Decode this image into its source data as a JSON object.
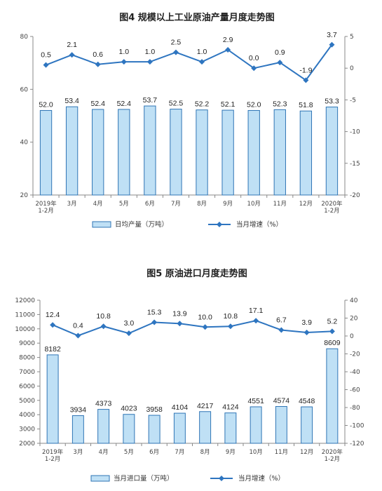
{
  "colors": {
    "bar_fill": "#bfe0f5",
    "bar_stroke": "#2f75b5",
    "line": "#2e75c0",
    "marker": "#2e75c0"
  },
  "chart_data": [
    {
      "type": "bar",
      "title": "图4  规模以上工业原油产量月度走势图",
      "categories": [
        [
          "2019年",
          "1-2月"
        ],
        [
          "3月"
        ],
        [
          "4月"
        ],
        [
          "5月"
        ],
        [
          "6月"
        ],
        [
          "7月"
        ],
        [
          "8月"
        ],
        [
          "9月"
        ],
        [
          "10月"
        ],
        [
          "11月"
        ],
        [
          "12月"
        ],
        [
          "2020年",
          "1-2月"
        ]
      ],
      "series": [
        {
          "name": "日均产量（万吨）",
          "type": "bar",
          "axis": "left",
          "values": [
            52.0,
            53.4,
            52.4,
            52.4,
            53.7,
            52.5,
            52.2,
            52.1,
            52.0,
            52.3,
            51.8,
            53.3
          ],
          "labels": [
            "52.0",
            "53.4",
            "52.4",
            "52.4",
            "53.7",
            "52.5",
            "52.2",
            "52.1",
            "52.0",
            "52.3",
            "51.8",
            "53.3"
          ]
        },
        {
          "name": "当月增速（%）",
          "type": "line",
          "axis": "right",
          "values": [
            0.5,
            2.1,
            0.6,
            1.0,
            1.0,
            2.5,
            1.0,
            2.9,
            0.0,
            0.9,
            -1.9,
            3.7
          ],
          "labels": [
            "0.5",
            "2.1",
            "0.6",
            "1.0",
            "1.0",
            "2.5",
            "1.0",
            "2.9",
            "0.0",
            "0.9",
            "-1.9",
            "3.7"
          ]
        }
      ],
      "y_left": {
        "range": [
          20,
          80
        ],
        "ticks": [
          "20",
          "40",
          "60",
          "80"
        ]
      },
      "y_right": {
        "range": [
          -20,
          5
        ],
        "ticks": [
          "5",
          "0",
          "-5",
          "-10",
          "-15",
          "-20"
        ]
      },
      "legend_position": "bottom",
      "grid": false
    },
    {
      "type": "bar",
      "title": "图5  原油进口月度走势图",
      "categories": [
        [
          "2019年",
          "1-2月"
        ],
        [
          "3月"
        ],
        [
          "4月"
        ],
        [
          "5月"
        ],
        [
          "6月"
        ],
        [
          "7月"
        ],
        [
          "8月"
        ],
        [
          "9月"
        ],
        [
          "10月"
        ],
        [
          "11月"
        ],
        [
          "12月"
        ],
        [
          "2020年",
          "1-2月"
        ]
      ],
      "series": [
        {
          "name": "当月进口量（万吨）",
          "type": "bar",
          "axis": "left",
          "values": [
            8182,
            3934,
            4373,
            4023,
            3958,
            4104,
            4217,
            4124,
            4551,
            4574,
            4548,
            8609
          ],
          "labels": [
            "8182",
            "3934",
            "4373",
            "4023",
            "3958",
            "4104",
            "4217",
            "4124",
            "4551",
            "4574",
            "4548",
            "8609"
          ]
        },
        {
          "name": "当月增速（%）",
          "type": "line",
          "axis": "right",
          "values": [
            12.4,
            0.4,
            10.8,
            3.0,
            15.3,
            13.9,
            10.0,
            10.8,
            17.1,
            6.7,
            3.9,
            5.2
          ],
          "labels": [
            "12.4",
            "0.4",
            "10.8",
            "3.0",
            "15.3",
            "13.9",
            "10.0",
            "10.8",
            "17.1",
            "6.7",
            "3.9",
            "5.2"
          ]
        }
      ],
      "y_left": {
        "range": [
          2000,
          12000
        ],
        "ticks": [
          "2000",
          "3000",
          "4000",
          "5000",
          "6000",
          "7000",
          "8000",
          "9000",
          "10000",
          "11000",
          "12000"
        ]
      },
      "y_right": {
        "range": [
          -120,
          40
        ],
        "ticks": [
          "40",
          "20",
          "0",
          "-20",
          "-40",
          "-60",
          "-80",
          "-100",
          "-120"
        ]
      },
      "legend_position": "bottom",
      "grid": false
    }
  ]
}
